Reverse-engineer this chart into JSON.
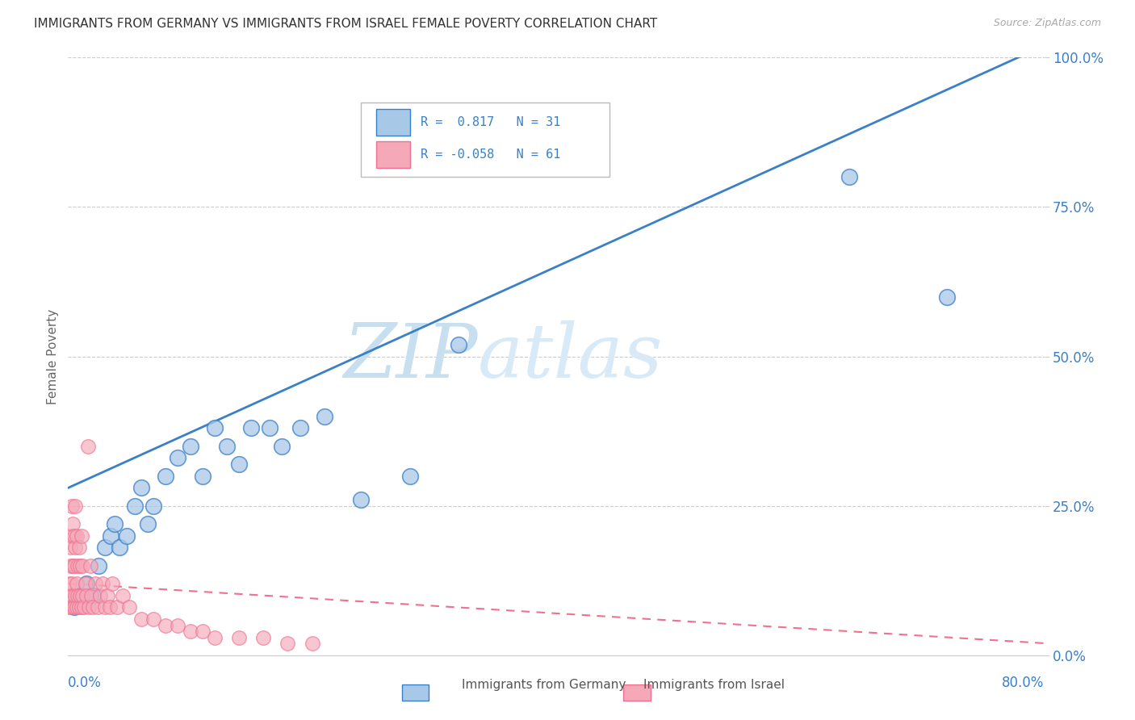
{
  "title": "IMMIGRANTS FROM GERMANY VS IMMIGRANTS FROM ISRAEL FEMALE POVERTY CORRELATION CHART",
  "source": "Source: ZipAtlas.com",
  "ylabel": "Female Poverty",
  "legend_label1": "Immigrants from Germany",
  "legend_label2": "Immigrants from Israel",
  "watermark_zip": "ZIP",
  "watermark_atlas": "atlas",
  "germany_color": "#a8c8e8",
  "israel_color": "#f4a8b8",
  "germany_line_color": "#3a80c8",
  "israel_line_color": "#f07090",
  "xlim": [
    0.0,
    0.8
  ],
  "ylim": [
    0.0,
    1.0
  ],
  "germany_x": [
    0.005,
    0.01,
    0.015,
    0.02,
    0.025,
    0.03,
    0.035,
    0.038,
    0.042,
    0.048,
    0.055,
    0.06,
    0.065,
    0.07,
    0.08,
    0.09,
    0.1,
    0.11,
    0.12,
    0.13,
    0.14,
    0.15,
    0.165,
    0.175,
    0.19,
    0.21,
    0.24,
    0.28,
    0.32,
    0.64,
    0.72
  ],
  "germany_y": [
    0.08,
    0.1,
    0.12,
    0.1,
    0.15,
    0.18,
    0.2,
    0.22,
    0.18,
    0.2,
    0.25,
    0.28,
    0.22,
    0.25,
    0.3,
    0.33,
    0.35,
    0.3,
    0.38,
    0.35,
    0.32,
    0.38,
    0.38,
    0.35,
    0.38,
    0.4,
    0.26,
    0.3,
    0.52,
    0.8,
    0.6
  ],
  "israel_x": [
    0.001,
    0.001,
    0.002,
    0.002,
    0.002,
    0.003,
    0.003,
    0.003,
    0.003,
    0.004,
    0.004,
    0.004,
    0.005,
    0.005,
    0.005,
    0.006,
    0.006,
    0.006,
    0.007,
    0.007,
    0.007,
    0.008,
    0.008,
    0.009,
    0.009,
    0.01,
    0.01,
    0.011,
    0.011,
    0.012,
    0.012,
    0.013,
    0.014,
    0.015,
    0.016,
    0.017,
    0.018,
    0.019,
    0.02,
    0.022,
    0.024,
    0.026,
    0.028,
    0.03,
    0.032,
    0.034,
    0.036,
    0.04,
    0.045,
    0.05,
    0.06,
    0.07,
    0.08,
    0.09,
    0.1,
    0.11,
    0.12,
    0.14,
    0.16,
    0.18,
    0.2
  ],
  "israel_y": [
    0.08,
    0.12,
    0.1,
    0.15,
    0.18,
    0.08,
    0.12,
    0.2,
    0.25,
    0.1,
    0.15,
    0.22,
    0.08,
    0.15,
    0.2,
    0.1,
    0.18,
    0.25,
    0.08,
    0.12,
    0.2,
    0.1,
    0.15,
    0.08,
    0.18,
    0.1,
    0.15,
    0.08,
    0.2,
    0.1,
    0.15,
    0.08,
    0.12,
    0.1,
    0.35,
    0.08,
    0.15,
    0.1,
    0.08,
    0.12,
    0.08,
    0.1,
    0.12,
    0.08,
    0.1,
    0.08,
    0.12,
    0.08,
    0.1,
    0.08,
    0.06,
    0.06,
    0.05,
    0.05,
    0.04,
    0.04,
    0.03,
    0.03,
    0.03,
    0.02,
    0.02
  ],
  "germany_line_x0": 0.0,
  "germany_line_y0": 0.28,
  "germany_line_x1": 0.8,
  "germany_line_y1": 1.02,
  "israel_line_x0": 0.0,
  "israel_line_y0": 0.12,
  "israel_line_x1": 0.8,
  "israel_line_y1": 0.02
}
